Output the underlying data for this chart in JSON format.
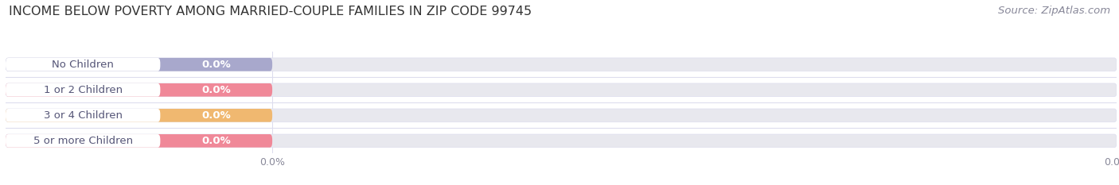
{
  "title": "INCOME BELOW POVERTY AMONG MARRIED-COUPLE FAMILIES IN ZIP CODE 99745",
  "source": "Source: ZipAtlas.com",
  "categories": [
    "No Children",
    "1 or 2 Children",
    "3 or 4 Children",
    "5 or more Children"
  ],
  "values": [
    0.0,
    0.0,
    0.0,
    0.0
  ],
  "bar_colors": [
    "#a8a8cc",
    "#f08898",
    "#f0b870",
    "#f08898"
  ],
  "bar_bg_color": "#e8e8ee",
  "white_pill_color": "#ffffff",
  "value_labels": [
    "0.0%",
    "0.0%",
    "0.0%",
    "0.0%"
  ],
  "title_fontsize": 11.5,
  "source_fontsize": 9.5,
  "bar_label_fontsize": 9.5,
  "value_fontsize": 9.5,
  "bg_color": "#ffffff",
  "plot_bg_color": "#ffffff",
  "text_color": "#555577",
  "title_color": "#333333",
  "grid_color": "#ddddee",
  "tick_color": "#888899"
}
